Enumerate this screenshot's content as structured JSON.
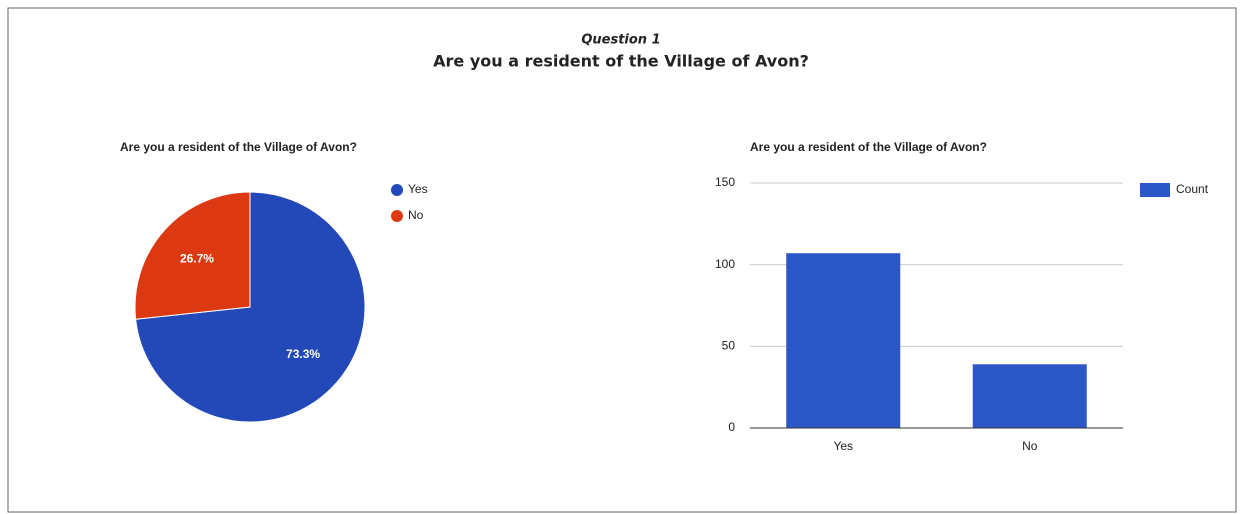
{
  "header": {
    "label": "Question 1",
    "title": "Are you a resident of the Village of Avon?"
  },
  "chart_data": [
    {
      "type": "pie",
      "title": "Are you a resident of the Village of Avon?",
      "categories": [
        "Yes",
        "No"
      ],
      "values": [
        73.3,
        26.7
      ],
      "value_labels": [
        "73.3%",
        "26.7%"
      ],
      "colors": [
        "#2349b8",
        "#dc3912"
      ],
      "legend": "right"
    },
    {
      "type": "bar",
      "title": "Are you a resident of the Village of Avon?",
      "categories": [
        "Yes",
        "No"
      ],
      "series": [
        {
          "name": "Count",
          "color": "#2a56c6",
          "values": [
            107,
            39
          ]
        }
      ],
      "ylim": [
        0,
        150
      ],
      "yticks": [
        0,
        50,
        100,
        150
      ],
      "grid": true,
      "legend": "right"
    }
  ]
}
